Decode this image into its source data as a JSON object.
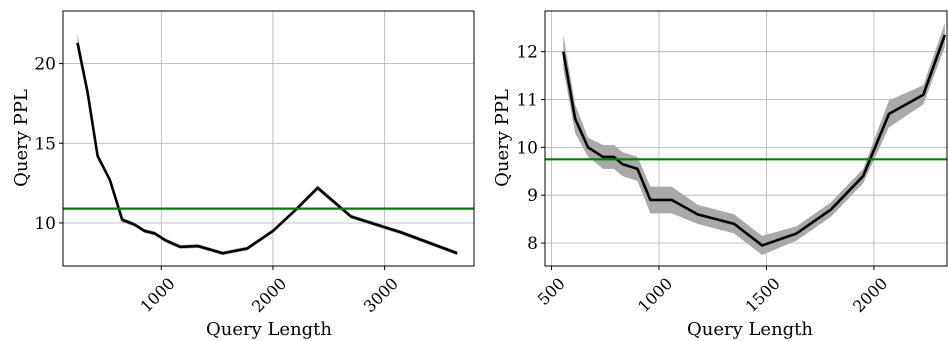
{
  "chart_data": [
    {
      "type": "line",
      "xlabel": "Query Length",
      "ylabel": "Query PPL",
      "xlim": [
        120,
        3800
      ],
      "ylim": [
        7.3,
        23.3
      ],
      "xticks": [
        1000,
        2000,
        3000
      ],
      "xtick_labels": [
        "1000",
        "2000",
        "3000"
      ],
      "yticks": [
        10,
        15,
        20
      ],
      "ytick_labels": [
        "10",
        "15",
        "20"
      ],
      "grid": true,
      "reference_line": {
        "y": 10.9,
        "color": "#008000"
      },
      "band_color": "#a9a9a9",
      "line_color": "#000000",
      "series": [
        {
          "x": [
            250,
            340,
            430,
            540,
            650,
            760,
            850,
            940,
            1040,
            1170,
            1330,
            1550,
            1770,
            2000,
            2200,
            2400,
            2700,
            3150,
            3650
          ],
          "y": [
            21.3,
            18.2,
            14.2,
            12.7,
            10.2,
            9.9,
            9.5,
            9.35,
            8.9,
            8.5,
            8.55,
            8.1,
            8.4,
            9.5,
            10.8,
            12.2,
            10.4,
            9.4,
            8.1
          ],
          "band": [
            0.55,
            0.3,
            0.2,
            0.15,
            0.15,
            0.12,
            0.12,
            0.12,
            0.12,
            0.12,
            0.12,
            0.12,
            0.12,
            0.12,
            0.12,
            0.15,
            0.12,
            0.12,
            0.12
          ]
        }
      ]
    },
    {
      "type": "line",
      "xlabel": "Query Length",
      "ylabel": "Query PPL",
      "xlim": [
        470,
        2340
      ],
      "ylim": [
        7.52,
        12.85
      ],
      "xticks": [
        500,
        1000,
        1500,
        2000
      ],
      "xtick_labels": [
        "500",
        "1000",
        "1500",
        "2000"
      ],
      "yticks": [
        8,
        9,
        10,
        11,
        12
      ],
      "ytick_labels": [
        "8",
        "9",
        "10",
        "11",
        "12"
      ],
      "grid": true,
      "reference_line": {
        "y": 9.75,
        "color": "#008000"
      },
      "band_color": "#a9a9a9",
      "line_color": "#000000",
      "series": [
        {
          "x": [
            555,
            610,
            670,
            740,
            790,
            830,
            900,
            960,
            1060,
            1180,
            1350,
            1480,
            1640,
            1800,
            1950,
            2070,
            2230,
            2330
          ],
          "y": [
            12.0,
            10.6,
            10.0,
            9.8,
            9.8,
            9.65,
            9.55,
            8.9,
            8.9,
            8.6,
            8.4,
            7.95,
            8.2,
            8.7,
            9.4,
            10.7,
            11.1,
            12.35
          ],
          "band": [
            0.35,
            0.3,
            0.2,
            0.25,
            0.25,
            0.25,
            0.25,
            0.28,
            0.28,
            0.2,
            0.2,
            0.2,
            0.15,
            0.15,
            0.15,
            0.28,
            0.2,
            0.25
          ]
        }
      ]
    }
  ]
}
